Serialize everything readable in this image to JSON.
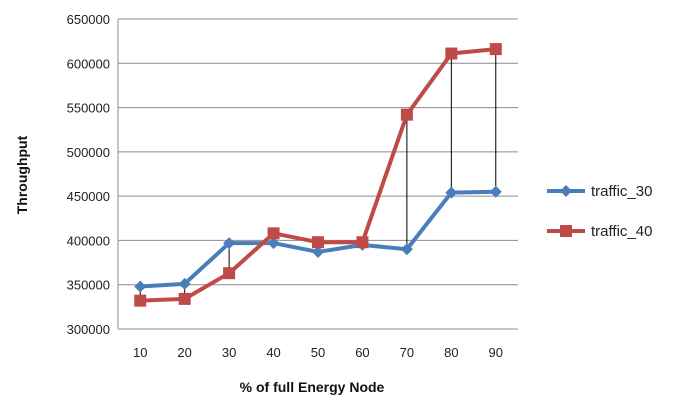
{
  "chart_data": {
    "type": "line",
    "title": "",
    "xlabel": "% of full Energy Node",
    "ylabel": "Throughput",
    "categories": [
      "10",
      "20",
      "30",
      "40",
      "50",
      "60",
      "70",
      "80",
      "90"
    ],
    "ylim": [
      300000,
      650000
    ],
    "yticks": [
      "300000",
      "350000",
      "400000",
      "450000",
      "500000",
      "550000",
      "600000",
      "650000"
    ],
    "grid": "horizontal",
    "legend_position": "right",
    "drop_lines": true,
    "series": [
      {
        "name": "traffic_30",
        "color": "#4a7ebb",
        "marker": "diamond",
        "values": [
          348000,
          351000,
          397000,
          397000,
          387000,
          395000,
          390000,
          454000,
          455000
        ]
      },
      {
        "name": "traffic_40",
        "color": "#be4b48",
        "marker": "square",
        "values": [
          332000,
          334000,
          363000,
          408000,
          398000,
          398000,
          542000,
          611000,
          616000
        ]
      }
    ]
  }
}
